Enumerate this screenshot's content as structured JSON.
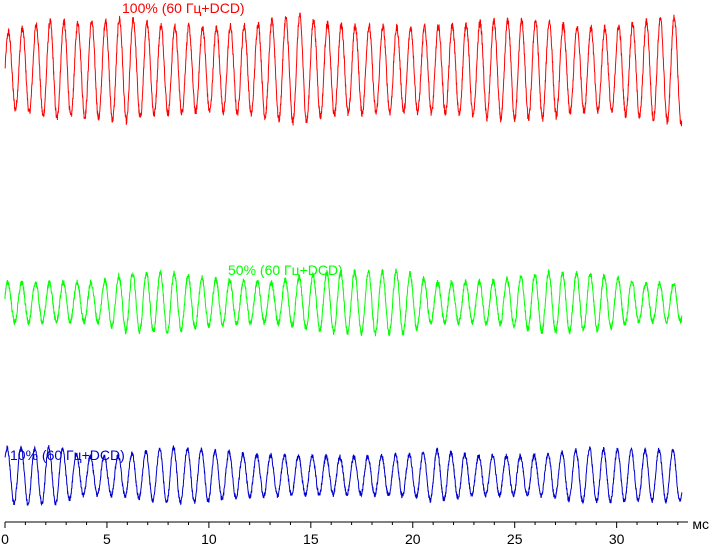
{
  "chart_data": {
    "type": "line",
    "xlabel": "мс",
    "xlim": [
      0,
      33.5
    ],
    "xticks": [
      0,
      5,
      10,
      15,
      20,
      25,
      30
    ],
    "ylim": [
      0,
      1
    ],
    "grid": false,
    "legend": "none",
    "series": [
      {
        "name": "100% (60 Гц+DCD)",
        "color": "#ff0000",
        "frequency_khz": 1.47,
        "baseline": 0.875,
        "amplitude": 0.095,
        "noise": 0.015,
        "envelope": [
          [
            0,
            0.75
          ],
          [
            2.4,
            1.0
          ],
          [
            3.5,
            0.95
          ],
          [
            6.0,
            1.05
          ],
          [
            7.5,
            0.9
          ],
          [
            10.0,
            0.85
          ],
          [
            12.0,
            0.9
          ],
          [
            14.5,
            1.1
          ],
          [
            15.5,
            0.95
          ],
          [
            17.0,
            0.9
          ],
          [
            20.0,
            0.85
          ],
          [
            22.0,
            0.9
          ],
          [
            24.0,
            1.0
          ],
          [
            26.5,
            1.0
          ],
          [
            28.0,
            0.85
          ],
          [
            29.5,
            0.85
          ],
          [
            31.0,
            0.95
          ],
          [
            33.2,
            1.1
          ]
        ]
      },
      {
        "name": "50% (60 Гц+DCD)",
        "color": "#00ff00",
        "frequency_khz": 1.47,
        "baseline": 0.425,
        "amplitude": 0.045,
        "noise": 0.012,
        "envelope": [
          [
            0,
            0.85
          ],
          [
            4.5,
            0.85
          ],
          [
            6.0,
            1.25
          ],
          [
            8.0,
            1.3
          ],
          [
            10.0,
            1.0
          ],
          [
            13.0,
            0.85
          ],
          [
            16.0,
            1.3
          ],
          [
            19.5,
            1.35
          ],
          [
            21.0,
            0.85
          ],
          [
            24.0,
            0.9
          ],
          [
            26.5,
            1.3
          ],
          [
            29.0,
            1.2
          ],
          [
            31.0,
            0.85
          ],
          [
            33.2,
            0.8
          ]
        ]
      },
      {
        "name": "10% (60 Гц+DCD)",
        "color": "#0000cc",
        "frequency_khz": 1.47,
        "baseline": 0.09,
        "amplitude": 0.045,
        "noise": 0.01,
        "envelope": [
          [
            0,
            1.2
          ],
          [
            2.5,
            1.2
          ],
          [
            4.0,
            0.8
          ],
          [
            6.0,
            0.9
          ],
          [
            8.0,
            1.2
          ],
          [
            10.0,
            1.1
          ],
          [
            12.0,
            0.9
          ],
          [
            14.0,
            0.85
          ],
          [
            17.0,
            0.8
          ],
          [
            20.0,
            0.9
          ],
          [
            21.0,
            1.1
          ],
          [
            23.0,
            0.85
          ],
          [
            26.0,
            0.85
          ],
          [
            28.5,
            1.15
          ],
          [
            30.0,
            1.1
          ],
          [
            33.2,
            1.1
          ]
        ]
      }
    ]
  }
}
